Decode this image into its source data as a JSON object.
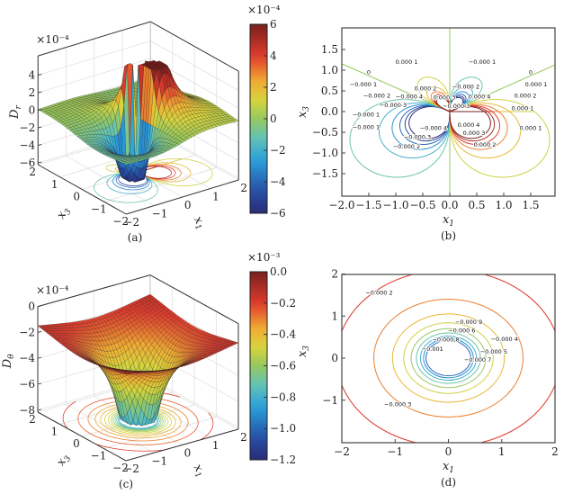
{
  "chart_data": [
    {
      "type": "surface",
      "caption": "(a)",
      "zlabel": {
        "base": "D",
        "sub": "r"
      },
      "x1label": {
        "base": "x",
        "sub": "1"
      },
      "x3label": {
        "base": "x",
        "sub": "3"
      },
      "zexponent": "×10⁻⁴",
      "zticks": [
        "−6",
        "−4",
        "−2",
        "0",
        "2",
        "4"
      ],
      "x1ticks": [
        "−2",
        "−1",
        "0",
        "1",
        "2"
      ],
      "x3ticks": [
        "2",
        "1",
        "0",
        "−1",
        "−2"
      ],
      "colorbar": {
        "exponent": "×10⁻⁴",
        "ticks": [
          "6",
          "4",
          "2",
          "0",
          "−2",
          "−4",
          "−6"
        ],
        "range": [
          -6,
          6
        ],
        "colormap": "jet"
      },
      "floor_contours": true
    },
    {
      "type": "contour",
      "caption": "(b)",
      "xlabel": {
        "base": "x",
        "sub": "1"
      },
      "ylabel": {
        "base": "x",
        "sub": "3"
      },
      "xticks": [
        "−2.0",
        "−1.5",
        "−1.0",
        "−0.5",
        "0.0",
        "0.5",
        "1.0",
        "1.5"
      ],
      "yticks": [
        "1.5",
        "1.0",
        "0.5",
        "0.0",
        "−0.5",
        "−1.0",
        "−1.5"
      ],
      "xlim": [
        -2,
        2
      ],
      "ylim": [
        -2,
        2
      ],
      "levels": [
        -0.0006,
        -0.0005,
        -0.0004,
        -0.0003,
        -0.0002,
        -0.0001,
        0,
        0.0001,
        0.0002,
        0.0003,
        0.0004,
        0.0005,
        0.0006
      ],
      "labels": [
        {
          "text": "0.000 1",
          "x": -0.8,
          "y": 1.2
        },
        {
          "text": "−0.000 1",
          "x": 0.6,
          "y": 1.2
        },
        {
          "text": "0",
          "x": -1.5,
          "y": 0.95
        },
        {
          "text": "0",
          "x": 1.5,
          "y": 0.95
        },
        {
          "text": "−0.000 1",
          "x": -1.6,
          "y": 0.65
        },
        {
          "text": "0.000 1",
          "x": 1.6,
          "y": 0.65
        },
        {
          "text": "0.000 2",
          "x": -0.45,
          "y": 0.55
        },
        {
          "text": "−0.000 2",
          "x": 0.3,
          "y": 0.6
        },
        {
          "text": "−0.000 2",
          "x": -1.35,
          "y": 0.38
        },
        {
          "text": "0.000 2",
          "x": 1.4,
          "y": 0.38
        },
        {
          "text": "0.000 3",
          "x": -0.1,
          "y": 0.38
        },
        {
          "text": "−0.000 3",
          "x": 0.12,
          "y": 0.3
        },
        {
          "text": "−0.000 3",
          "x": -1.05,
          "y": 0.24
        },
        {
          "text": "−0.000 4",
          "x": -0.75,
          "y": 0.18
        },
        {
          "text": "0.000 4",
          "x": 0.55,
          "y": 0.18
        },
        {
          "text": "−0.000 1",
          "x": -1.55,
          "y": 0.1
        },
        {
          "text": "0.000 1",
          "x": 1.35,
          "y": 0.08
        },
        {
          "text": "−0.000 1",
          "x": -1.55,
          "y": -0.38
        },
        {
          "text": "0.000 1",
          "x": 1.5,
          "y": -0.4
        },
        {
          "text": "−0.000 4",
          "x": -0.3,
          "y": -0.4
        },
        {
          "text": "0.000 4",
          "x": 0.35,
          "y": -0.33
        },
        {
          "text": "−0.000 3",
          "x": -0.6,
          "y": -0.45
        },
        {
          "text": "0.000 3",
          "x": 0.45,
          "y": -0.48
        },
        {
          "text": "−0.000 2",
          "x": -0.8,
          "y": -0.72
        },
        {
          "text": "0.000 2",
          "x": 0.65,
          "y": -0.8
        }
      ]
    },
    {
      "type": "surface",
      "caption": "(c)",
      "zlabel": {
        "base": "D",
        "sub": "θ"
      },
      "x1label": {
        "base": "x",
        "sub": "1"
      },
      "x3label": {
        "base": "x",
        "sub": "3"
      },
      "zexponent": "×10⁻⁴",
      "zticks": [
        "−8",
        "−6",
        "−4",
        "−2",
        "0"
      ],
      "x1ticks": [
        "−2",
        "−1",
        "0",
        "1",
        "2"
      ],
      "x3ticks": [
        "2",
        "1",
        "0",
        "−1",
        "−2"
      ],
      "colorbar": {
        "exponent": "×10⁻³",
        "ticks": [
          "0.0",
          "−0.2",
          "−0.4",
          "−0.6",
          "−0.8",
          "−1.0",
          "−1.2"
        ],
        "range": [
          -1.2,
          0
        ],
        "colormap": "jet"
      },
      "floor_contours": true
    },
    {
      "type": "contour",
      "caption": "(d)",
      "xlabel": {
        "base": "x",
        "sub": "1"
      },
      "ylabel": {
        "base": "x",
        "sub": "3"
      },
      "xticks": [
        "−2",
        "−1",
        "0",
        "1",
        "2"
      ],
      "yticks": [
        "2",
        "1",
        "0",
        "−1"
      ],
      "xlim": [
        -2,
        2
      ],
      "ylim": [
        -2,
        2
      ],
      "levels": [
        -0.001,
        -0.0009,
        -0.0008,
        -0.0007,
        -0.0006,
        -0.0005,
        -0.0004,
        -0.0003,
        -0.0002
      ],
      "labels": [
        {
          "text": "−0.000 2",
          "x": -1.3,
          "y": 1.55
        },
        {
          "text": "−0.000 3",
          "x": -0.95,
          "y": -1.1
        },
        {
          "text": "−0.000 4",
          "x": 1.05,
          "y": 0.45
        },
        {
          "text": "−0.000 5",
          "x": 0.85,
          "y": 0.15
        },
        {
          "text": "−0.000 6",
          "x": 0.25,
          "y": 0.65
        },
        {
          "text": "−0.000 7",
          "x": 0.55,
          "y": 0.3
        },
        {
          "text": "−0.000 8",
          "x": -0.05,
          "y": 0.48
        },
        {
          "text": "−0.000 9",
          "x": 0.38,
          "y": 0.38
        },
        {
          "text": "−0.001",
          "x": -0.3,
          "y": 0.3
        }
      ]
    }
  ]
}
